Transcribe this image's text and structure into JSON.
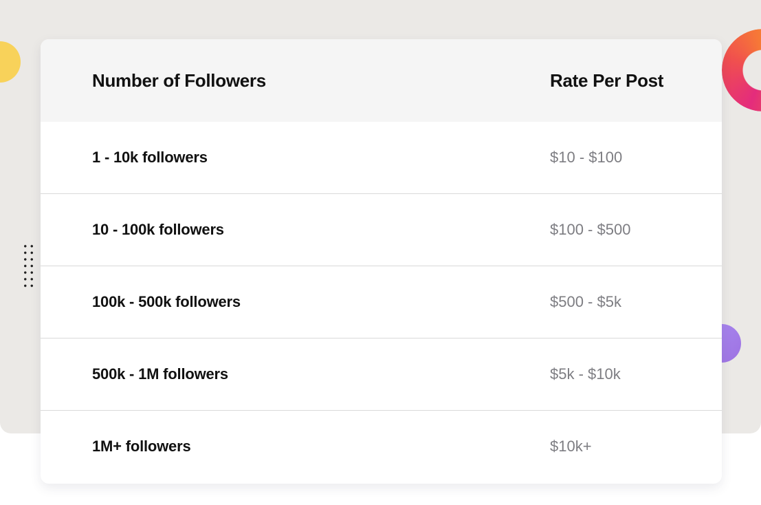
{
  "table": {
    "headers": {
      "followers": "Number of Followers",
      "rate": "Rate Per Post"
    },
    "rows": [
      {
        "followers": "1 - 10k followers",
        "rate": "$10 - $100"
      },
      {
        "followers": "10 - 100k followers",
        "rate": "$100 - $500"
      },
      {
        "followers": "100k - 500k followers",
        "rate": "$500 - $5k"
      },
      {
        "followers": "500k - 1M followers",
        "rate": "$5k - $10k"
      },
      {
        "followers": "1M+ followers",
        "rate": "$10k+"
      }
    ]
  },
  "colors": {
    "background": "#ebe9e6",
    "header_background": "#f5f5f5",
    "rate_text": "#7d7d82",
    "accent_yellow": "#f8d25a",
    "accent_ring_orange": "#f98a2c",
    "accent_ring_pink": "#e42c7c",
    "accent_purple": "#a98af0"
  }
}
